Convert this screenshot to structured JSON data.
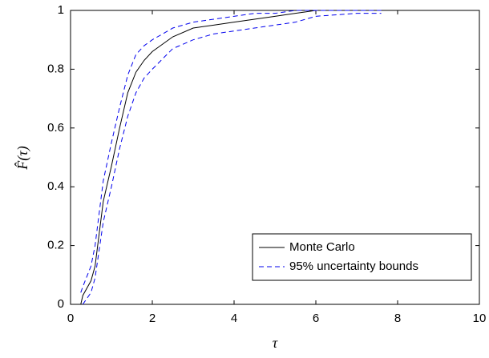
{
  "chart_data": {
    "type": "line",
    "xlabel": "τ",
    "ylabel": "F̂(τ)",
    "x": [
      0.25,
      0.3,
      0.5,
      0.6,
      0.8,
      1.0,
      1.2,
      1.4,
      1.6,
      1.8,
      2.0,
      2.5,
      3,
      3.5,
      4,
      4.5,
      5,
      5.5,
      6,
      7,
      7.6,
      8,
      10
    ],
    "series": [
      {
        "name": "Monte Carlo",
        "color": "#000000",
        "dash": false,
        "values": [
          0,
          0.03,
          0.08,
          0.13,
          0.35,
          0.47,
          0.6,
          0.72,
          0.79,
          0.83,
          0.86,
          0.91,
          0.94,
          0.95,
          0.96,
          0.97,
          0.98,
          0.99,
          1.0,
          1.0,
          1.0,
          1.0,
          1.0
        ]
      },
      {
        "name": "95% uncertainty bounds",
        "color": "#0000ee",
        "dash": true,
        "upper": [
          0.04,
          0.06,
          0.13,
          0.2,
          0.42,
          0.55,
          0.67,
          0.78,
          0.85,
          0.88,
          0.9,
          0.94,
          0.96,
          0.97,
          0.98,
          0.99,
          0.99,
          1.0,
          1.0,
          1.0,
          1.0,
          null,
          null
        ],
        "lower": [
          null,
          0,
          0.04,
          0.09,
          0.28,
          0.4,
          0.53,
          0.64,
          0.72,
          0.77,
          0.8,
          0.87,
          0.9,
          0.92,
          0.93,
          0.94,
          0.95,
          0.96,
          0.98,
          0.99,
          0.99,
          null,
          null
        ]
      }
    ],
    "xlim": [
      0,
      10
    ],
    "xticks": [
      0,
      2,
      4,
      6,
      8,
      10
    ],
    "ylim": [
      0,
      1
    ],
    "yticks": [
      0,
      0.2,
      0.4,
      0.6,
      0.8,
      1
    ],
    "grid": false,
    "legend": "lower right"
  }
}
